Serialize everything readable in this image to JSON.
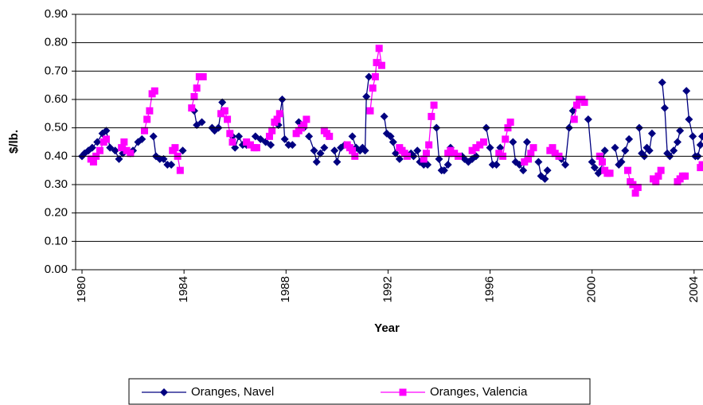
{
  "chart_data": {
    "type": "line",
    "y_label": "$/lb.",
    "x_label": "Year",
    "xlim": [
      1979.75,
      2004.35
    ],
    "xticks": [
      1980,
      1984,
      1988,
      1992,
      1996,
      2000,
      2004
    ],
    "ylim": [
      0,
      0.9
    ],
    "yticks": [
      {
        "value": 0,
        "label": "0.00"
      },
      {
        "value": 0.1,
        "label": "0.10"
      },
      {
        "value": 0.2,
        "label": "0.20"
      },
      {
        "value": 0.3,
        "label": "0.30"
      },
      {
        "value": 0.4,
        "label": "0.40"
      },
      {
        "value": 0.5,
        "label": "0.50"
      },
      {
        "value": 0.6,
        "label": "0.60"
      },
      {
        "value": 0.7,
        "label": "0.70"
      },
      {
        "value": 0.8,
        "label": "0.80"
      },
      {
        "value": 0.9,
        "label": "0.90"
      }
    ],
    "grid": true,
    "series": [
      {
        "name": "Oranges, Navel",
        "color": "#000080",
        "marker": "diamond",
        "x": [
          1980.0,
          1980.1,
          1980.25,
          1980.4,
          1980.6,
          1980.8,
          1980.95,
          1981.1,
          1981.3,
          1981.45,
          1981.6,
          null,
          1981.9,
          1982.0,
          1982.2,
          1982.35,
          null,
          1982.8,
          1982.9,
          1983.05,
          1983.2,
          1983.35,
          1983.5,
          null,
          1983.95,
          null,
          1984.4,
          1984.5,
          1984.7,
          null,
          1985.1,
          1985.2,
          1985.35,
          1985.5,
          null,
          1985.9,
          1986.0,
          1986.15,
          1986.3,
          1986.45,
          null,
          1986.8,
          1987.0,
          1987.2,
          1987.4,
          null,
          1987.7,
          1987.85,
          1987.95,
          1988.1,
          1988.25,
          null,
          1988.5,
          1988.7,
          null,
          1988.9,
          1989.1,
          1989.2,
          1989.35,
          1989.5,
          null,
          1989.9,
          1990.0,
          1990.15,
          1990.3,
          null,
          1990.6,
          1990.75,
          1990.9,
          1991.0,
          1991.1,
          1991.15,
          1991.25,
          null,
          1991.85,
          1991.95,
          1992.1,
          1992.2,
          1992.3,
          1992.45,
          null,
          1992.9,
          1993.0,
          1993.15,
          1993.25,
          1993.4,
          1993.55,
          null,
          1993.9,
          1994.0,
          1994.1,
          1994.2,
          1994.35,
          1994.45,
          null,
          1994.9,
          1995.0,
          1995.15,
          1995.3,
          1995.45,
          null,
          1995.85,
          1996.0,
          1996.1,
          1996.25,
          1996.4,
          null,
          1996.9,
          1997.0,
          1997.15,
          1997.3,
          1997.45,
          null,
          1997.9,
          1998.0,
          1998.15,
          1998.25,
          null,
          1998.8,
          1998.95,
          1999.1,
          1999.25,
          null,
          1999.85,
          2000.0,
          2000.1,
          2000.25,
          2000.35,
          2000.5,
          null,
          2000.9,
          2001.05,
          2001.15,
          2001.3,
          2001.45,
          null,
          2001.85,
          2001.95,
          2002.05,
          2002.15,
          2002.25,
          2002.35,
          null,
          2002.75,
          2002.85,
          2002.95,
          2003.05,
          2003.2,
          2003.35,
          2003.45,
          null,
          2003.7,
          2003.8,
          2003.95,
          2004.05,
          2004.15,
          2004.25,
          2004.32
        ],
        "values": [
          0.4,
          0.41,
          0.42,
          0.43,
          0.45,
          0.48,
          0.49,
          0.43,
          0.42,
          0.39,
          0.41,
          null,
          0.41,
          0.42,
          0.45,
          0.46,
          null,
          0.47,
          0.4,
          0.39,
          0.39,
          0.37,
          0.37,
          null,
          0.42,
          null,
          0.56,
          0.51,
          0.52,
          null,
          0.5,
          0.49,
          0.5,
          0.59,
          null,
          0.47,
          0.43,
          0.47,
          0.44,
          0.44,
          null,
          0.47,
          0.46,
          0.45,
          0.44,
          null,
          0.51,
          0.6,
          0.46,
          0.44,
          0.44,
          null,
          0.52,
          0.5,
          null,
          0.47,
          0.42,
          0.38,
          0.41,
          0.43,
          null,
          0.42,
          0.38,
          0.43,
          0.44,
          null,
          0.47,
          0.43,
          0.42,
          0.43,
          0.42,
          0.61,
          0.68,
          null,
          0.54,
          0.48,
          0.47,
          0.45,
          0.41,
          0.39,
          null,
          0.41,
          0.4,
          0.42,
          0.38,
          0.37,
          0.37,
          null,
          0.5,
          0.39,
          0.35,
          0.35,
          0.37,
          0.43,
          null,
          0.4,
          0.39,
          0.38,
          0.39,
          0.4,
          null,
          0.5,
          0.43,
          0.37,
          0.37,
          0.43,
          null,
          0.45,
          0.38,
          0.37,
          0.35,
          0.45,
          null,
          0.38,
          0.33,
          0.32,
          0.35,
          null,
          0.39,
          0.37,
          0.5,
          0.56,
          null,
          0.53,
          0.38,
          0.36,
          0.34,
          0.35,
          0.42,
          null,
          0.43,
          0.37,
          0.38,
          0.42,
          0.46,
          null,
          0.5,
          0.41,
          0.4,
          0.43,
          0.42,
          0.48,
          null,
          0.66,
          0.57,
          0.41,
          0.4,
          0.42,
          0.45,
          0.49,
          null,
          0.63,
          0.53,
          0.47,
          0.4,
          0.4,
          0.44,
          0.47
        ]
      },
      {
        "name": "Oranges, Valencia",
        "color": "#ff00ff",
        "marker": "square",
        "x": [
          1980.35,
          1980.45,
          1980.55,
          1980.7,
          1980.85,
          1980.95,
          null,
          1981.55,
          1981.65,
          1981.75,
          1981.9,
          null,
          1982.45,
          1982.55,
          1982.65,
          1982.75,
          1982.85,
          null,
          1983.55,
          1983.65,
          1983.75,
          1983.85,
          null,
          1984.3,
          1984.4,
          1984.5,
          1984.6,
          1984.75,
          null,
          1985.45,
          1985.6,
          1985.7,
          1985.8,
          1985.9,
          null,
          1986.45,
          1986.6,
          1986.75,
          1986.85,
          null,
          1987.35,
          1987.45,
          1987.55,
          1987.65,
          1987.75,
          null,
          1988.4,
          1988.5,
          1988.6,
          1988.7,
          1988.8,
          null,
          1989.5,
          1989.6,
          1989.7,
          null,
          1990.4,
          1990.5,
          1990.6,
          1990.7,
          null,
          1991.3,
          1991.4,
          1991.5,
          1991.55,
          1991.65,
          1991.75,
          null,
          1992.45,
          1992.55,
          1992.65,
          1992.75,
          null,
          1993.4,
          1993.5,
          1993.6,
          1993.7,
          1993.8,
          null,
          1994.35,
          1994.45,
          1994.6,
          1994.75,
          null,
          1995.3,
          1995.45,
          1995.6,
          1995.75,
          null,
          1996.35,
          1996.5,
          1996.6,
          1996.7,
          1996.8,
          null,
          1997.35,
          1997.5,
          1997.6,
          1997.7,
          null,
          1998.35,
          1998.45,
          1998.55,
          1998.7,
          null,
          1999.3,
          1999.4,
          1999.5,
          1999.6,
          1999.7,
          null,
          2000.3,
          2000.4,
          2000.5,
          2000.6,
          2000.7,
          null,
          2001.4,
          2001.5,
          2001.6,
          2001.7,
          2001.8,
          null,
          2002.4,
          2002.5,
          2002.6,
          2002.7,
          null,
          2003.35,
          2003.45,
          2003.55,
          2003.65,
          null,
          2004.25,
          2004.32
        ],
        "values": [
          0.39,
          0.38,
          0.4,
          0.42,
          0.45,
          0.46,
          null,
          0.43,
          0.45,
          0.42,
          0.41,
          null,
          0.49,
          0.53,
          0.56,
          0.62,
          0.63,
          null,
          0.42,
          0.43,
          0.4,
          0.35,
          null,
          0.57,
          0.61,
          0.64,
          0.68,
          0.68,
          null,
          0.55,
          0.56,
          0.53,
          0.48,
          0.45,
          null,
          0.45,
          0.44,
          0.43,
          0.43,
          null,
          0.47,
          0.49,
          0.52,
          0.53,
          0.55,
          null,
          0.48,
          0.49,
          0.5,
          0.51,
          0.53,
          null,
          0.49,
          0.48,
          0.47,
          null,
          0.44,
          0.43,
          0.42,
          0.4,
          null,
          0.56,
          0.64,
          0.68,
          0.73,
          0.78,
          0.72,
          null,
          0.43,
          0.42,
          0.41,
          0.4,
          null,
          0.39,
          0.41,
          0.44,
          0.54,
          0.58,
          null,
          0.41,
          0.42,
          0.41,
          0.4,
          null,
          0.42,
          0.43,
          0.44,
          0.45,
          null,
          0.41,
          0.4,
          0.46,
          0.5,
          0.52,
          null,
          0.38,
          0.39,
          0.41,
          0.43,
          null,
          0.42,
          0.43,
          0.41,
          0.4,
          null,
          0.53,
          0.58,
          0.6,
          0.6,
          0.59,
          null,
          0.4,
          0.38,
          0.35,
          0.34,
          0.34,
          null,
          0.35,
          0.31,
          0.3,
          0.27,
          0.29,
          null,
          0.32,
          0.31,
          0.33,
          0.35,
          null,
          0.31,
          0.32,
          0.33,
          0.33,
          null,
          0.36,
          0.37
        ]
      }
    ]
  }
}
